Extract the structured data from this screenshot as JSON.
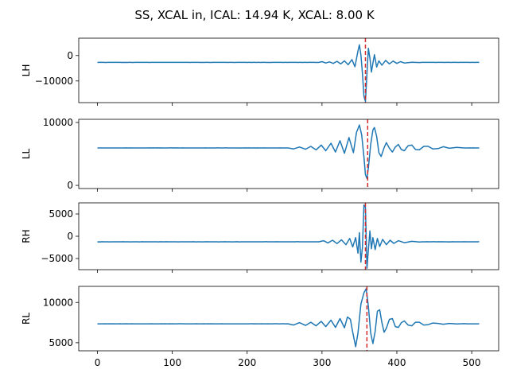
{
  "figure": {
    "title": "SS, XCAL in, ICAL: 14.94 K, XCAL: 8.00 K"
  },
  "colors": {
    "series": "#1f77b4",
    "marker": "#d62728",
    "axes": "#000000"
  },
  "chart_data": [
    {
      "type": "line",
      "ylabel": "LH",
      "xlim": [
        -25,
        536
      ],
      "ylim": [
        -18500,
        6800
      ],
      "xticks": [
        "0",
        "100",
        "200",
        "300",
        "400",
        "500"
      ],
      "yticks": [
        {
          "value": 0,
          "label": "0"
        },
        {
          "value": -10000,
          "label": "−10000"
        }
      ],
      "baseline": -2700,
      "marker_x": 358,
      "burst": [
        [
          296,
          -2700
        ],
        [
          300,
          -2400
        ],
        [
          305,
          -2950
        ],
        [
          310,
          -2500
        ],
        [
          315,
          -3100
        ],
        [
          320,
          -2300
        ],
        [
          325,
          -3300
        ],
        [
          330,
          -2100
        ],
        [
          335,
          -3600
        ],
        [
          340,
          -1600
        ],
        [
          344,
          -4400
        ],
        [
          348,
          1800
        ],
        [
          350,
          4200
        ],
        [
          352,
          200
        ],
        [
          354,
          -7000
        ],
        [
          356,
          -16000
        ],
        [
          358,
          -18000
        ],
        [
          360,
          -7000
        ],
        [
          362,
          2800
        ],
        [
          364,
          -1000
        ],
        [
          366,
          -6500
        ],
        [
          368,
          -3000
        ],
        [
          370,
          300
        ],
        [
          373,
          -4500
        ],
        [
          376,
          -2100
        ],
        [
          380,
          -3800
        ],
        [
          385,
          -1900
        ],
        [
          390,
          -3300
        ],
        [
          395,
          -2200
        ],
        [
          400,
          -3100
        ],
        [
          405,
          -2400
        ],
        [
          410,
          -2950
        ],
        [
          420,
          -2650
        ],
        [
          430,
          -2750
        ]
      ]
    },
    {
      "type": "line",
      "ylabel": "LL",
      "xlim": [
        -25,
        536
      ],
      "ylim": [
        -500,
        10500
      ],
      "xticks": [
        "0",
        "100",
        "200",
        "300",
        "400",
        "500"
      ],
      "yticks": [
        {
          "value": 10000,
          "label": "10000"
        },
        {
          "value": 0,
          "label": "0"
        }
      ],
      "baseline": 5950,
      "marker_x": 361,
      "burst": [
        [
          255,
          5950
        ],
        [
          262,
          5800
        ],
        [
          270,
          6100
        ],
        [
          278,
          5750
        ],
        [
          285,
          6200
        ],
        [
          292,
          5650
        ],
        [
          299,
          6400
        ],
        [
          305,
          5500
        ],
        [
          312,
          6700
        ],
        [
          318,
          5300
        ],
        [
          324,
          7100
        ],
        [
          330,
          5100
        ],
        [
          336,
          7600
        ],
        [
          342,
          5200
        ],
        [
          346,
          8400
        ],
        [
          350,
          9600
        ],
        [
          353,
          8000
        ],
        [
          356,
          4500
        ],
        [
          358,
          1700
        ],
        [
          360,
          1100
        ],
        [
          362,
          2800
        ],
        [
          365,
          6500
        ],
        [
          368,
          8800
        ],
        [
          370,
          9200
        ],
        [
          373,
          7800
        ],
        [
          376,
          5200
        ],
        [
          379,
          4600
        ],
        [
          383,
          6000
        ],
        [
          386,
          6800
        ],
        [
          390,
          5900
        ],
        [
          394,
          5300
        ],
        [
          398,
          6100
        ],
        [
          402,
          6500
        ],
        [
          406,
          5700
        ],
        [
          410,
          5500
        ],
        [
          415,
          6300
        ],
        [
          420,
          6400
        ],
        [
          425,
          5700
        ],
        [
          430,
          5650
        ],
        [
          436,
          6200
        ],
        [
          442,
          6200
        ],
        [
          448,
          5800
        ],
        [
          455,
          5850
        ],
        [
          462,
          6150
        ],
        [
          470,
          5900
        ],
        [
          480,
          6050
        ],
        [
          490,
          5950
        ]
      ]
    },
    {
      "type": "line",
      "ylabel": "RH",
      "xlim": [
        -25,
        536
      ],
      "ylim": [
        -7500,
        7500
      ],
      "xticks": [
        "0",
        "100",
        "200",
        "300",
        "400",
        "500"
      ],
      "yticks": [
        {
          "value": 5000,
          "label": "5000"
        },
        {
          "value": 0,
          "label": "0"
        },
        {
          "value": -5000,
          "label": "−5000"
        }
      ],
      "baseline": -1250,
      "marker_x": 358,
      "burst": [
        [
          296,
          -1250
        ],
        [
          302,
          -1000
        ],
        [
          308,
          -1500
        ],
        [
          314,
          -900
        ],
        [
          320,
          -1650
        ],
        [
          326,
          -800
        ],
        [
          332,
          -1900
        ],
        [
          337,
          -500
        ],
        [
          341,
          -2400
        ],
        [
          345,
          -300
        ],
        [
          348,
          -3800
        ],
        [
          350,
          800
        ],
        [
          352,
          -5800
        ],
        [
          354,
          -2500
        ],
        [
          356,
          7000
        ],
        [
          358,
          6500
        ],
        [
          360,
          -7200
        ],
        [
          362,
          -3000
        ],
        [
          364,
          1200
        ],
        [
          366,
          -2800
        ],
        [
          368,
          -300
        ],
        [
          371,
          -3000
        ],
        [
          374,
          -500
        ],
        [
          377,
          -2300
        ],
        [
          381,
          -700
        ],
        [
          386,
          -1900
        ],
        [
          391,
          -900
        ],
        [
          396,
          -1600
        ],
        [
          402,
          -1000
        ],
        [
          410,
          -1450
        ],
        [
          420,
          -1150
        ],
        [
          430,
          -1300
        ]
      ]
    },
    {
      "type": "line",
      "ylabel": "RL",
      "xlim": [
        -25,
        536
      ],
      "ylim": [
        4000,
        12000
      ],
      "xticks": [
        "0",
        "100",
        "200",
        "300",
        "400",
        "500"
      ],
      "yticks": [
        {
          "value": 10000,
          "label": "10000"
        },
        {
          "value": 5000,
          "label": "5000"
        }
      ],
      "baseline": 7350,
      "marker_x": 360,
      "burst": [
        [
          255,
          7350
        ],
        [
          262,
          7200
        ],
        [
          270,
          7500
        ],
        [
          278,
          7150
        ],
        [
          285,
          7550
        ],
        [
          292,
          7100
        ],
        [
          299,
          7650
        ],
        [
          305,
          7000
        ],
        [
          312,
          7800
        ],
        [
          318,
          6900
        ],
        [
          324,
          8000
        ],
        [
          330,
          6850
        ],
        [
          334,
          8200
        ],
        [
          338,
          7900
        ],
        [
          341,
          6300
        ],
        [
          345,
          4500
        ],
        [
          348,
          6200
        ],
        [
          352,
          9800
        ],
        [
          356,
          11200
        ],
        [
          359,
          11700
        ],
        [
          362,
          9500
        ],
        [
          365,
          6200
        ],
        [
          368,
          4900
        ],
        [
          371,
          6400
        ],
        [
          374,
          8900
        ],
        [
          377,
          9100
        ],
        [
          380,
          7500
        ],
        [
          383,
          6300
        ],
        [
          386,
          6800
        ],
        [
          390,
          7900
        ],
        [
          394,
          8000
        ],
        [
          398,
          7000
        ],
        [
          402,
          6900
        ],
        [
          406,
          7500
        ],
        [
          410,
          7700
        ],
        [
          415,
          7200
        ],
        [
          420,
          7100
        ],
        [
          425,
          7550
        ],
        [
          430,
          7550
        ],
        [
          436,
          7200
        ],
        [
          442,
          7250
        ],
        [
          448,
          7450
        ],
        [
          455,
          7400
        ],
        [
          462,
          7300
        ],
        [
          470,
          7400
        ],
        [
          480,
          7330
        ],
        [
          490,
          7370
        ]
      ]
    }
  ]
}
